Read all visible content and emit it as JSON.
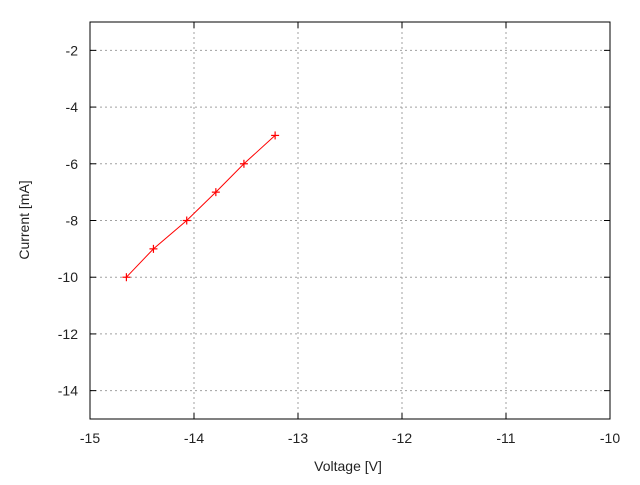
{
  "chart_data": {
    "type": "line",
    "title": "",
    "xlabel": "Voltage [V]",
    "ylabel": "Current [mA]",
    "xlim": [
      -15,
      -10
    ],
    "ylim": [
      -15,
      -1
    ],
    "xticks": [
      -15,
      -14,
      -13,
      -12,
      -11,
      -10
    ],
    "yticks": [
      -14,
      -12,
      -10,
      -8,
      -6,
      -4,
      -2
    ],
    "xtick_labels": [
      "-15",
      "-14",
      "-13",
      "-12",
      "-11",
      "-10"
    ],
    "ytick_labels": [
      "-14",
      "-12",
      "-10",
      "-8",
      "-6",
      "-4",
      "-2"
    ],
    "grid": true,
    "series": [
      {
        "x": [
          -14.65,
          -14.39,
          -14.07,
          -13.79,
          -13.52,
          -13.22
        ],
        "y": [
          -10,
          -9,
          -8,
          -7,
          -6,
          -5
        ],
        "color": "#ff0000",
        "marker": "+"
      }
    ]
  }
}
